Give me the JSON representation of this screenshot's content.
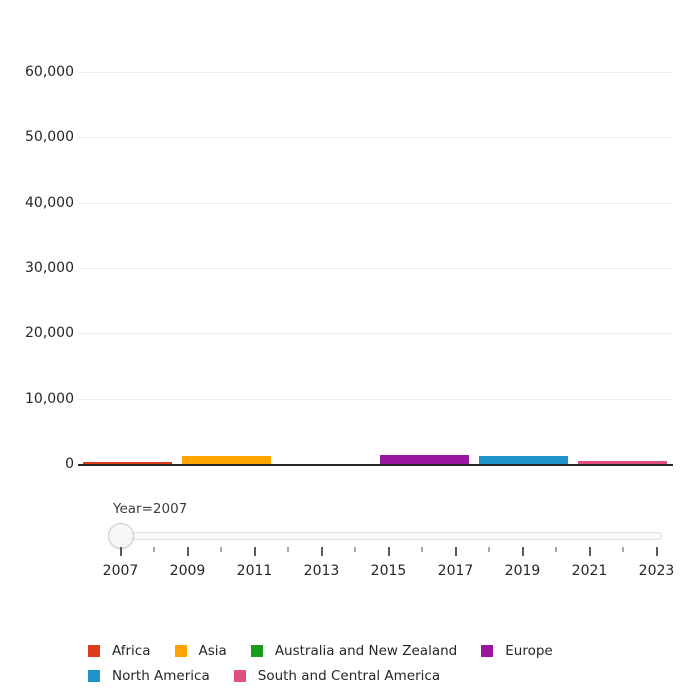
{
  "chart_data": {
    "type": "bar",
    "title": "",
    "xlabel": "",
    "ylabel": "",
    "categories": [
      "Africa",
      "Asia",
      "Australia and New Zealand",
      "Europe",
      "North America",
      "South and Central America"
    ],
    "values": [
      300,
      1300,
      30,
      1450,
      1200,
      400
    ],
    "colors": [
      "#dc3d1c",
      "#ffa301",
      "#189c1e",
      "#9b169e",
      "#2093c9",
      "#e04f7d"
    ],
    "ylim": [
      0,
      64000
    ],
    "yticks": {
      "values": [
        0,
        10000,
        20000,
        30000,
        40000,
        50000,
        60000
      ],
      "labels": [
        "0",
        "10,000",
        "20,000",
        "30,000",
        "40,000",
        "50,000",
        "60,000"
      ]
    },
    "grid": true,
    "legend_position": "bottom",
    "legend": [
      "Africa",
      "Asia",
      "Australia and New Zealand",
      "Europe",
      "North America",
      "South and Central America"
    ],
    "slider": {
      "label": "Year=2007",
      "prefix": "Year=",
      "current": 2007,
      "years": [
        2007,
        2008,
        2009,
        2010,
        2011,
        2012,
        2013,
        2014,
        2015,
        2016,
        2017,
        2018,
        2019,
        2020,
        2021,
        2022,
        2023
      ],
      "labeled_years": [
        2007,
        2009,
        2011,
        2013,
        2015,
        2017,
        2019,
        2021,
        2023
      ]
    }
  }
}
